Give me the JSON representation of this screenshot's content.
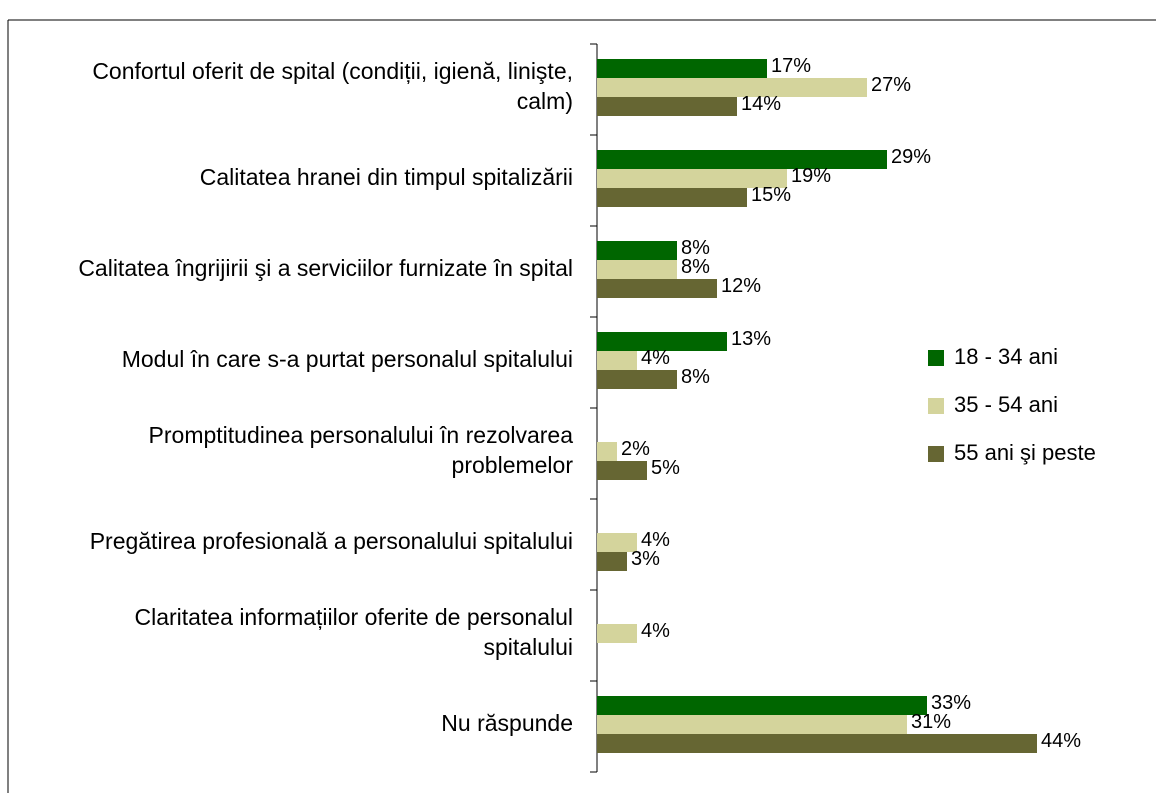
{
  "chart_data": {
    "type": "bar",
    "orientation": "horizontal",
    "categories": [
      "Confortul oferit de spital (condiții, igienă, linişte, calm)",
      "Calitatea hranei din timpul spitalizării",
      "Calitatea îngrijirii şi a serviciilor furnizate în spital",
      "Modul în care s-a purtat personalul spitalului",
      "Promptitudinea personalului în rezolvarea problemelor",
      "Pregătirea profesională a personalului spitalului",
      "Claritatea informațiilor oferite de personalul spitalului",
      "Nu răspunde"
    ],
    "series": [
      {
        "name": "18 - 34 ani",
        "color": "#006600",
        "values": [
          17,
          29,
          8,
          13,
          null,
          null,
          null,
          33
        ],
        "value_labels": [
          "17%",
          "29%",
          "8%",
          "13%",
          null,
          null,
          null,
          "33%"
        ]
      },
      {
        "name": "35 - 54 ani",
        "color": "#d4d49c",
        "values": [
          27,
          19,
          8,
          4,
          2,
          4,
          4,
          31
        ],
        "value_labels": [
          "27%",
          "19%",
          "8%",
          "4%",
          "2%",
          "4%",
          "4%",
          "31%"
        ]
      },
      {
        "name": "55 ani şi peste",
        "color": "#666633",
        "values": [
          14,
          15,
          12,
          8,
          5,
          3,
          null,
          44
        ],
        "value_labels": [
          "14%",
          "15%",
          "12%",
          "8%",
          "5%",
          "3%",
          null,
          "44%"
        ]
      }
    ],
    "legend": "right"
  }
}
